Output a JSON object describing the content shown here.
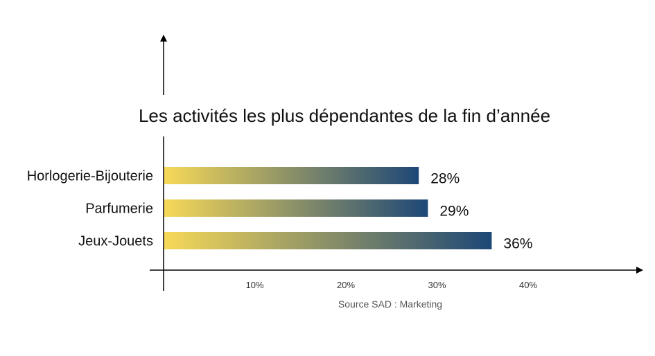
{
  "chart_data": {
    "type": "bar",
    "orientation": "horizontal",
    "title": "Les activités les plus dépendantes de la fin d’année",
    "categories": [
      "Horlogerie-Bijouterie",
      "Parfumerie",
      "Jeux-Jouets"
    ],
    "values": [
      28,
      29,
      36
    ],
    "value_labels": [
      "28%",
      "29%",
      "36%"
    ],
    "x_ticks": [
      10,
      20,
      30,
      40
    ],
    "x_tick_labels": [
      "10%",
      "20%",
      "30%",
      "40%"
    ],
    "xlim": [
      0,
      52
    ],
    "source": "Source SAD : Marketing",
    "gradient": {
      "start": "#f7d958",
      "end": "#1d4777"
    },
    "grid": false,
    "legend": "none"
  }
}
